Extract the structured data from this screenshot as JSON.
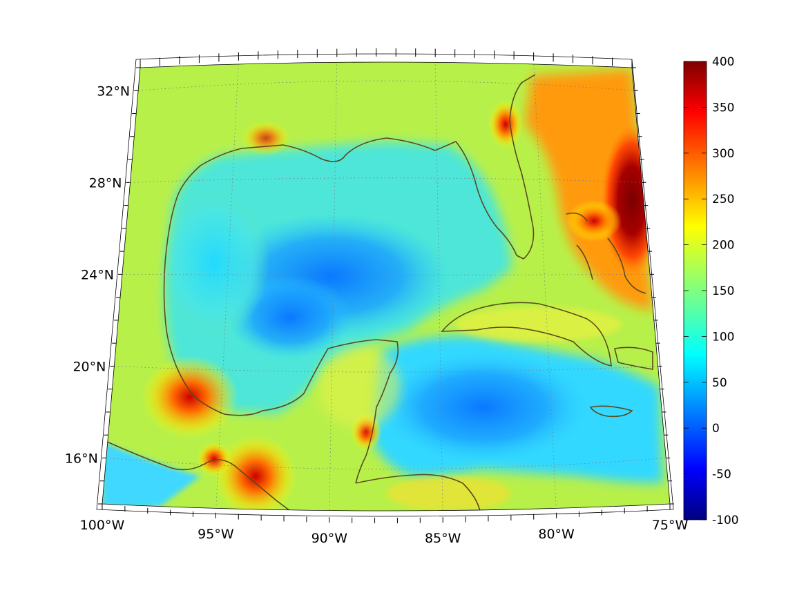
{
  "map": {
    "lat_labels": [
      {
        "lat": 32,
        "label": "32°N"
      },
      {
        "lat": 28,
        "label": "28°N"
      },
      {
        "lat": 24,
        "label": "24°N"
      },
      {
        "lat": 20,
        "label": "20°N"
      },
      {
        "lat": 16,
        "label": "16°N"
      }
    ],
    "lon_labels": [
      {
        "lon": -100,
        "label": "100°W"
      },
      {
        "lon": -95,
        "label": "95°W"
      },
      {
        "lon": -90,
        "label": "90°W"
      },
      {
        "lon": -85,
        "label": "85°W"
      },
      {
        "lon": -80,
        "label": "80°W"
      },
      {
        "lon": -75,
        "label": "75°W"
      }
    ],
    "extent": {
      "lon_min": -100,
      "lon_max": -75,
      "lat_min": 14,
      "lat_max": 33
    },
    "graticule": "dotted",
    "coastline_color": "#5a4a1e",
    "colormap": "jet"
  },
  "colorbar": {
    "min": -100,
    "max": 400,
    "ticks": [
      "400",
      "350",
      "300",
      "250",
      "200",
      "150",
      "100",
      "50",
      "0",
      "-50",
      "-100"
    ],
    "colors": [
      "#00007f",
      "#0000ff",
      "#007fff",
      "#00ffff",
      "#7fff7f",
      "#ffff00",
      "#ff7f00",
      "#ff0000",
      "#7f0000"
    ]
  }
}
